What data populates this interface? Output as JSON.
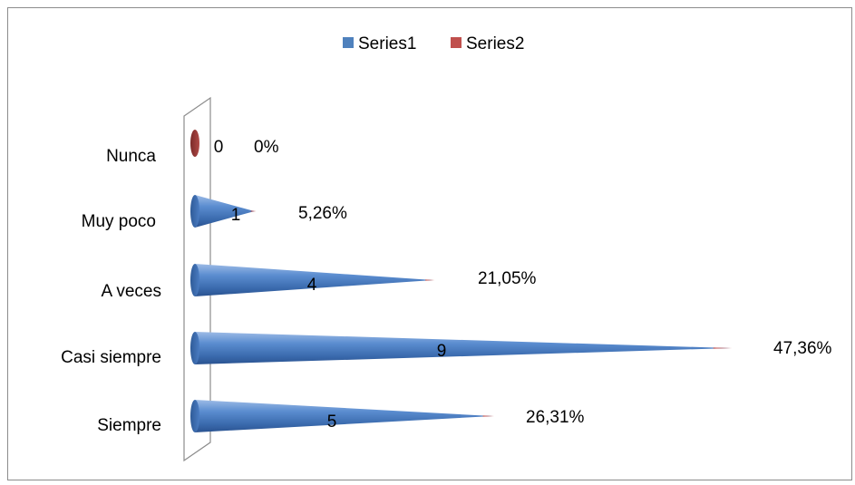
{
  "chart_data": {
    "type": "bar",
    "categories": [
      "Nunca",
      "Muy poco",
      "A veces",
      "Casi siempre",
      "Siempre"
    ],
    "series": [
      {
        "name": "Series1",
        "values": [
          0,
          1,
          4,
          9,
          5
        ],
        "color": "#4F81BD"
      },
      {
        "name": "Series2",
        "values": [
          0,
          0.0526,
          0.2105,
          0.4736,
          0.2631
        ],
        "color": "#C0504D"
      }
    ],
    "data_labels": {
      "Series1": [
        "0",
        "1",
        "4",
        "9",
        "5"
      ],
      "Series2": [
        "0%",
        "5,26%",
        "21,05%",
        "47,36%",
        "26,31%"
      ]
    },
    "orientation": "horizontal",
    "bar_shape": "cone",
    "legend_position": "top",
    "grid": false,
    "xlim": [
      0,
      9.6
    ]
  }
}
